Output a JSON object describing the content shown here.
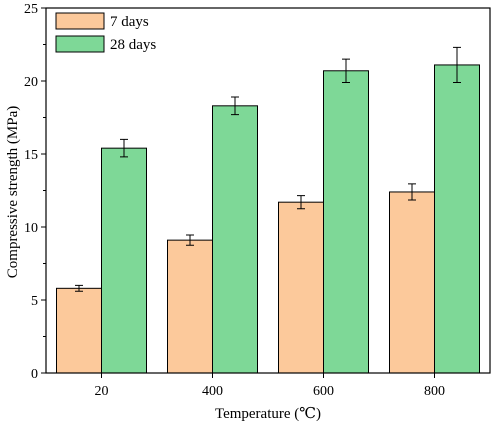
{
  "chart_data": {
    "type": "bar",
    "categories": [
      "20",
      "400",
      "600",
      "800"
    ],
    "series": [
      {
        "name": "7 days",
        "values": [
          5.8,
          9.1,
          11.7,
          12.4
        ],
        "errors": [
          0.2,
          0.35,
          0.45,
          0.55
        ],
        "color": "#FCC99B"
      },
      {
        "name": "28 days",
        "values": [
          15.4,
          18.3,
          20.7,
          21.1
        ],
        "errors": [
          0.6,
          0.6,
          0.8,
          1.2
        ],
        "color": "#7ED897"
      }
    ],
    "xlabel": "Temperature (℃)",
    "ylabel": "Compressive strength (MPa)",
    "ylim": [
      0,
      25
    ],
    "yticks": [
      "0",
      "5",
      "10",
      "15",
      "20",
      "25"
    ],
    "ytick_values": [
      0,
      5,
      10,
      15,
      20,
      25
    ],
    "grid": false,
    "legend_position": "top-left"
  }
}
